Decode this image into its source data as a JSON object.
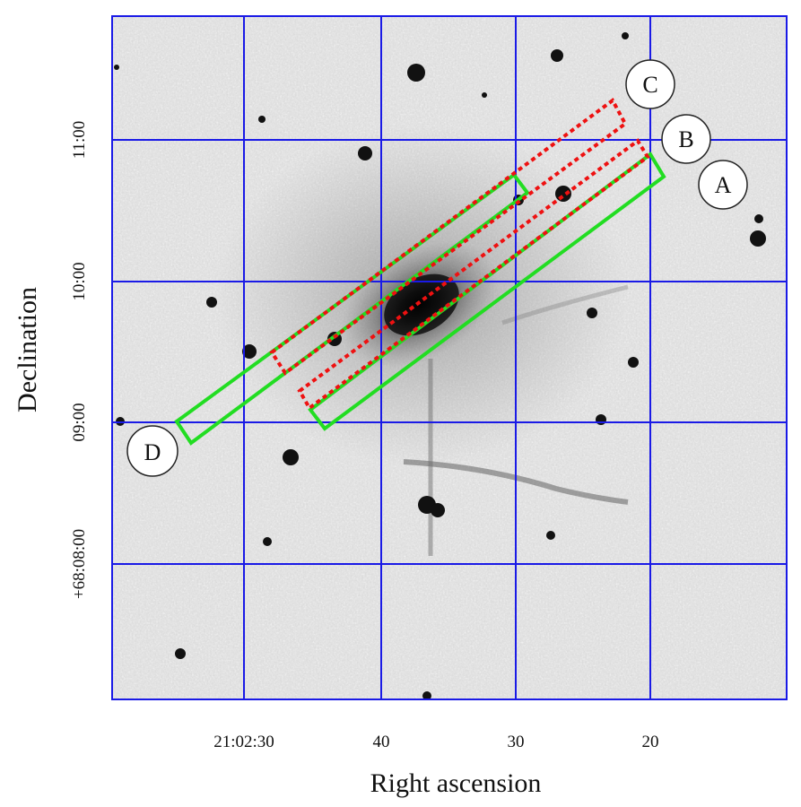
{
  "figure": {
    "xlabel": "Right ascension",
    "ylabel": "Declination",
    "ra_ticks": [
      "21:02:30",
      "40",
      "30",
      "20"
    ],
    "dec_ticks": [
      "11:00",
      "10:00",
      "09:00",
      "+68:08:00"
    ],
    "slits": [
      {
        "label": "A",
        "style": "solid",
        "color": "#22dd22"
      },
      {
        "label": "B",
        "style": "dotted",
        "color": "#ee1111"
      },
      {
        "label": "C",
        "style": "dotted",
        "color": "#ee1111"
      },
      {
        "label": "D",
        "style": "solid",
        "color": "#22dd22"
      }
    ],
    "grid_color": "#1a1ae6"
  }
}
